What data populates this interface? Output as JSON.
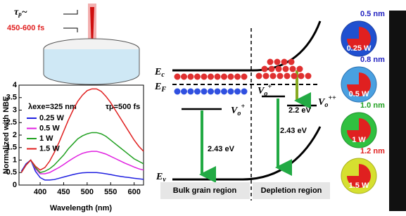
{
  "chart_data": {
    "type": "line",
    "x_label": "Wavelength (nm)",
    "y_label": "Normalized with NBE",
    "annotations": [
      "λexe=325 nm",
      "τp=500 fs"
    ],
    "x": [
      360,
      370,
      380,
      390,
      400,
      410,
      420,
      430,
      440,
      450,
      460,
      470,
      480,
      490,
      500,
      510,
      520,
      530,
      540,
      550,
      560,
      570,
      580,
      590,
      600,
      610,
      620
    ],
    "series": [
      {
        "name": "0.25 W",
        "color": "#2020e0",
        "values": [
          0.55,
          0.85,
          1.0,
          0.55,
          0.3,
          0.2,
          0.2,
          0.22,
          0.27,
          0.32,
          0.37,
          0.42,
          0.46,
          0.49,
          0.5,
          0.5,
          0.5,
          0.48,
          0.45,
          0.42,
          0.38,
          0.35,
          0.32,
          0.3,
          0.27,
          0.25,
          0.23
        ]
      },
      {
        "name": "0.5 W",
        "color": "#e020e0",
        "values": [
          0.5,
          0.8,
          1.0,
          0.65,
          0.45,
          0.45,
          0.5,
          0.6,
          0.7,
          0.82,
          0.95,
          1.07,
          1.18,
          1.27,
          1.32,
          1.35,
          1.35,
          1.3,
          1.24,
          1.15,
          1.06,
          0.97,
          0.88,
          0.8,
          0.72,
          0.65,
          0.6
        ]
      },
      {
        "name": "1 W",
        "color": "#20a020",
        "values": [
          0.5,
          0.8,
          1.0,
          0.7,
          0.5,
          0.55,
          0.65,
          0.8,
          1.0,
          1.2,
          1.45,
          1.65,
          1.85,
          1.97,
          2.05,
          2.1,
          2.1,
          2.05,
          1.95,
          1.8,
          1.65,
          1.5,
          1.35,
          1.2,
          1.05,
          0.95,
          0.85
        ]
      },
      {
        "name": "1.5 W",
        "color": "#e02020",
        "values": [
          0.5,
          0.8,
          1.0,
          0.75,
          0.6,
          0.7,
          0.95,
          1.3,
          1.7,
          2.15,
          2.6,
          3.0,
          3.35,
          3.6,
          3.78,
          3.85,
          3.85,
          3.75,
          3.55,
          3.3,
          3.0,
          2.7,
          2.4,
          2.1,
          1.8,
          1.55,
          1.35
        ]
      }
    ],
    "xlim": [
      355,
      620
    ],
    "xticks": [
      400,
      450,
      500,
      550,
      600
    ],
    "ylim": [
      0,
      4
    ],
    "yticks": [
      0,
      0.5,
      1,
      1.5,
      2,
      2.5,
      3,
      3.5,
      4
    ]
  },
  "laser": {
    "tau": "τ",
    "tau_sub": "p",
    "tau_tail": "~",
    "duration": "450-600 fs"
  },
  "band_diagram": {
    "ec": "E",
    "ec_sub": "c",
    "ef": "E",
    "ef_sub": "F",
    "ev": "E",
    "ev_sub": "v",
    "v1": "V",
    "v1_sub": "o",
    "v1_sup": "+",
    "v2": "V",
    "v2_sub": "o",
    "v2_sup": "+",
    "v3": "V",
    "v3_sub": "o",
    "v3_sup": "++",
    "gap_bulk": "2.43 eV",
    "gap_dep": "2.43 eV",
    "gap_2": "2.2 eV",
    "bulk": "Bulk grain region",
    "depletion": "Depletion region"
  },
  "spheres": [
    {
      "depth": "0.5 nm",
      "power": "0.25 W"
    },
    {
      "depth": "0.8 nm",
      "power": "0.5 W"
    },
    {
      "depth": "1.0 nm",
      "power": "1 W"
    },
    {
      "depth": "1.2 nm",
      "power": "1.5 W"
    }
  ]
}
